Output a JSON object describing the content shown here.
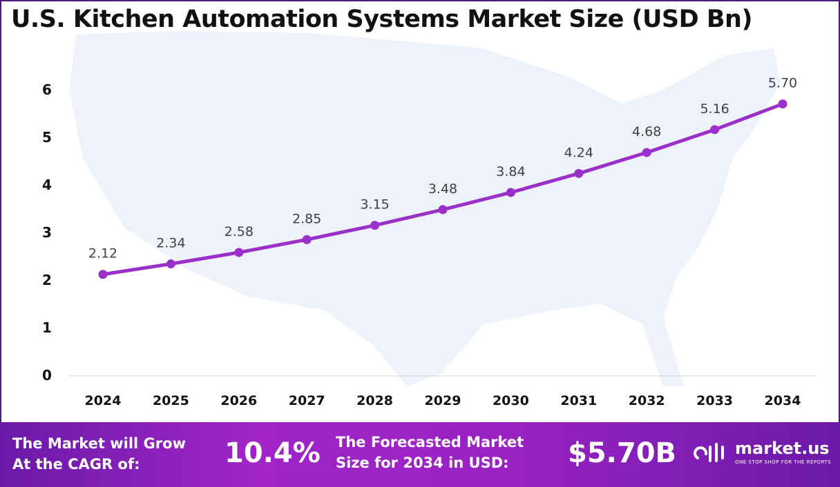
{
  "chart_data": {
    "type": "line",
    "title": "U.S. Kitchen Automation Systems Market Size (USD Bn)",
    "categories": [
      "2024",
      "2025",
      "2026",
      "2027",
      "2028",
      "2029",
      "2030",
      "2031",
      "2032",
      "2033",
      "2034"
    ],
    "values": [
      2.12,
      2.34,
      2.58,
      2.85,
      3.15,
      3.48,
      3.84,
      4.24,
      4.68,
      5.16,
      5.7
    ],
    "data_labels": [
      "2.12",
      "2.34",
      "2.58",
      "2.85",
      "3.15",
      "3.48",
      "3.84",
      "4.24",
      "4.68",
      "5.16",
      "5.70"
    ],
    "yticks": [
      "0",
      "1",
      "2",
      "3",
      "4",
      "5",
      "6"
    ],
    "ylim": [
      0,
      6
    ],
    "xlabel": "",
    "ylabel": "",
    "grid": false,
    "line_color": "#9b2fc9"
  },
  "footer": {
    "cagr_label_1": "The Market will Grow",
    "cagr_label_2": "At the CAGR of:",
    "cagr_value": "10.4%",
    "forecast_label_1": "The Forecasted Market",
    "forecast_label_2": "Size for 2034 in USD:",
    "forecast_value": "$5.70B",
    "logo_name": "market.us",
    "logo_tagline": "ONE STOP SHOP FOR THE REPORTS"
  }
}
